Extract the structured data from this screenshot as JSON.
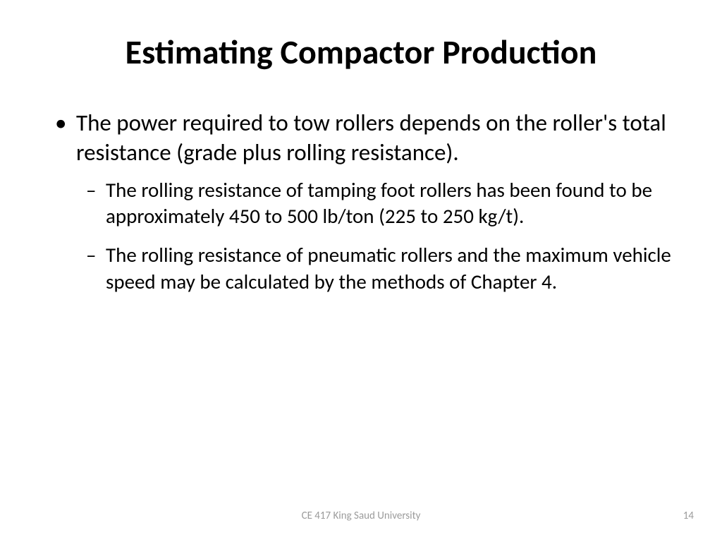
{
  "slide": {
    "title": "Estimating Compactor Production",
    "bullets": {
      "level1": {
        "item0": "The power required to tow rollers depends on the roller's total resistance (grade plus rolling resistance)."
      },
      "level2": {
        "item0": "The rolling resistance of tamping foot rollers has been found to be approximately 450 to 500 lb/ton (225 to 250 kg/t).",
        "item1": "The rolling resistance of pneumatic rollers and the maximum vehicle speed may be calculated by the methods of Chapter 4."
      }
    },
    "footer": {
      "center": "CE 417 King Saud University",
      "page_number": "14"
    }
  },
  "style": {
    "background_color": "#ffffff",
    "text_color": "#000000",
    "footer_color": "#9b9b9b",
    "title_fontsize": 48,
    "title_fontweight": 700,
    "level1_fontsize": 33,
    "level2_fontsize": 29,
    "footer_fontsize": 15,
    "font_family": "Calibri"
  }
}
